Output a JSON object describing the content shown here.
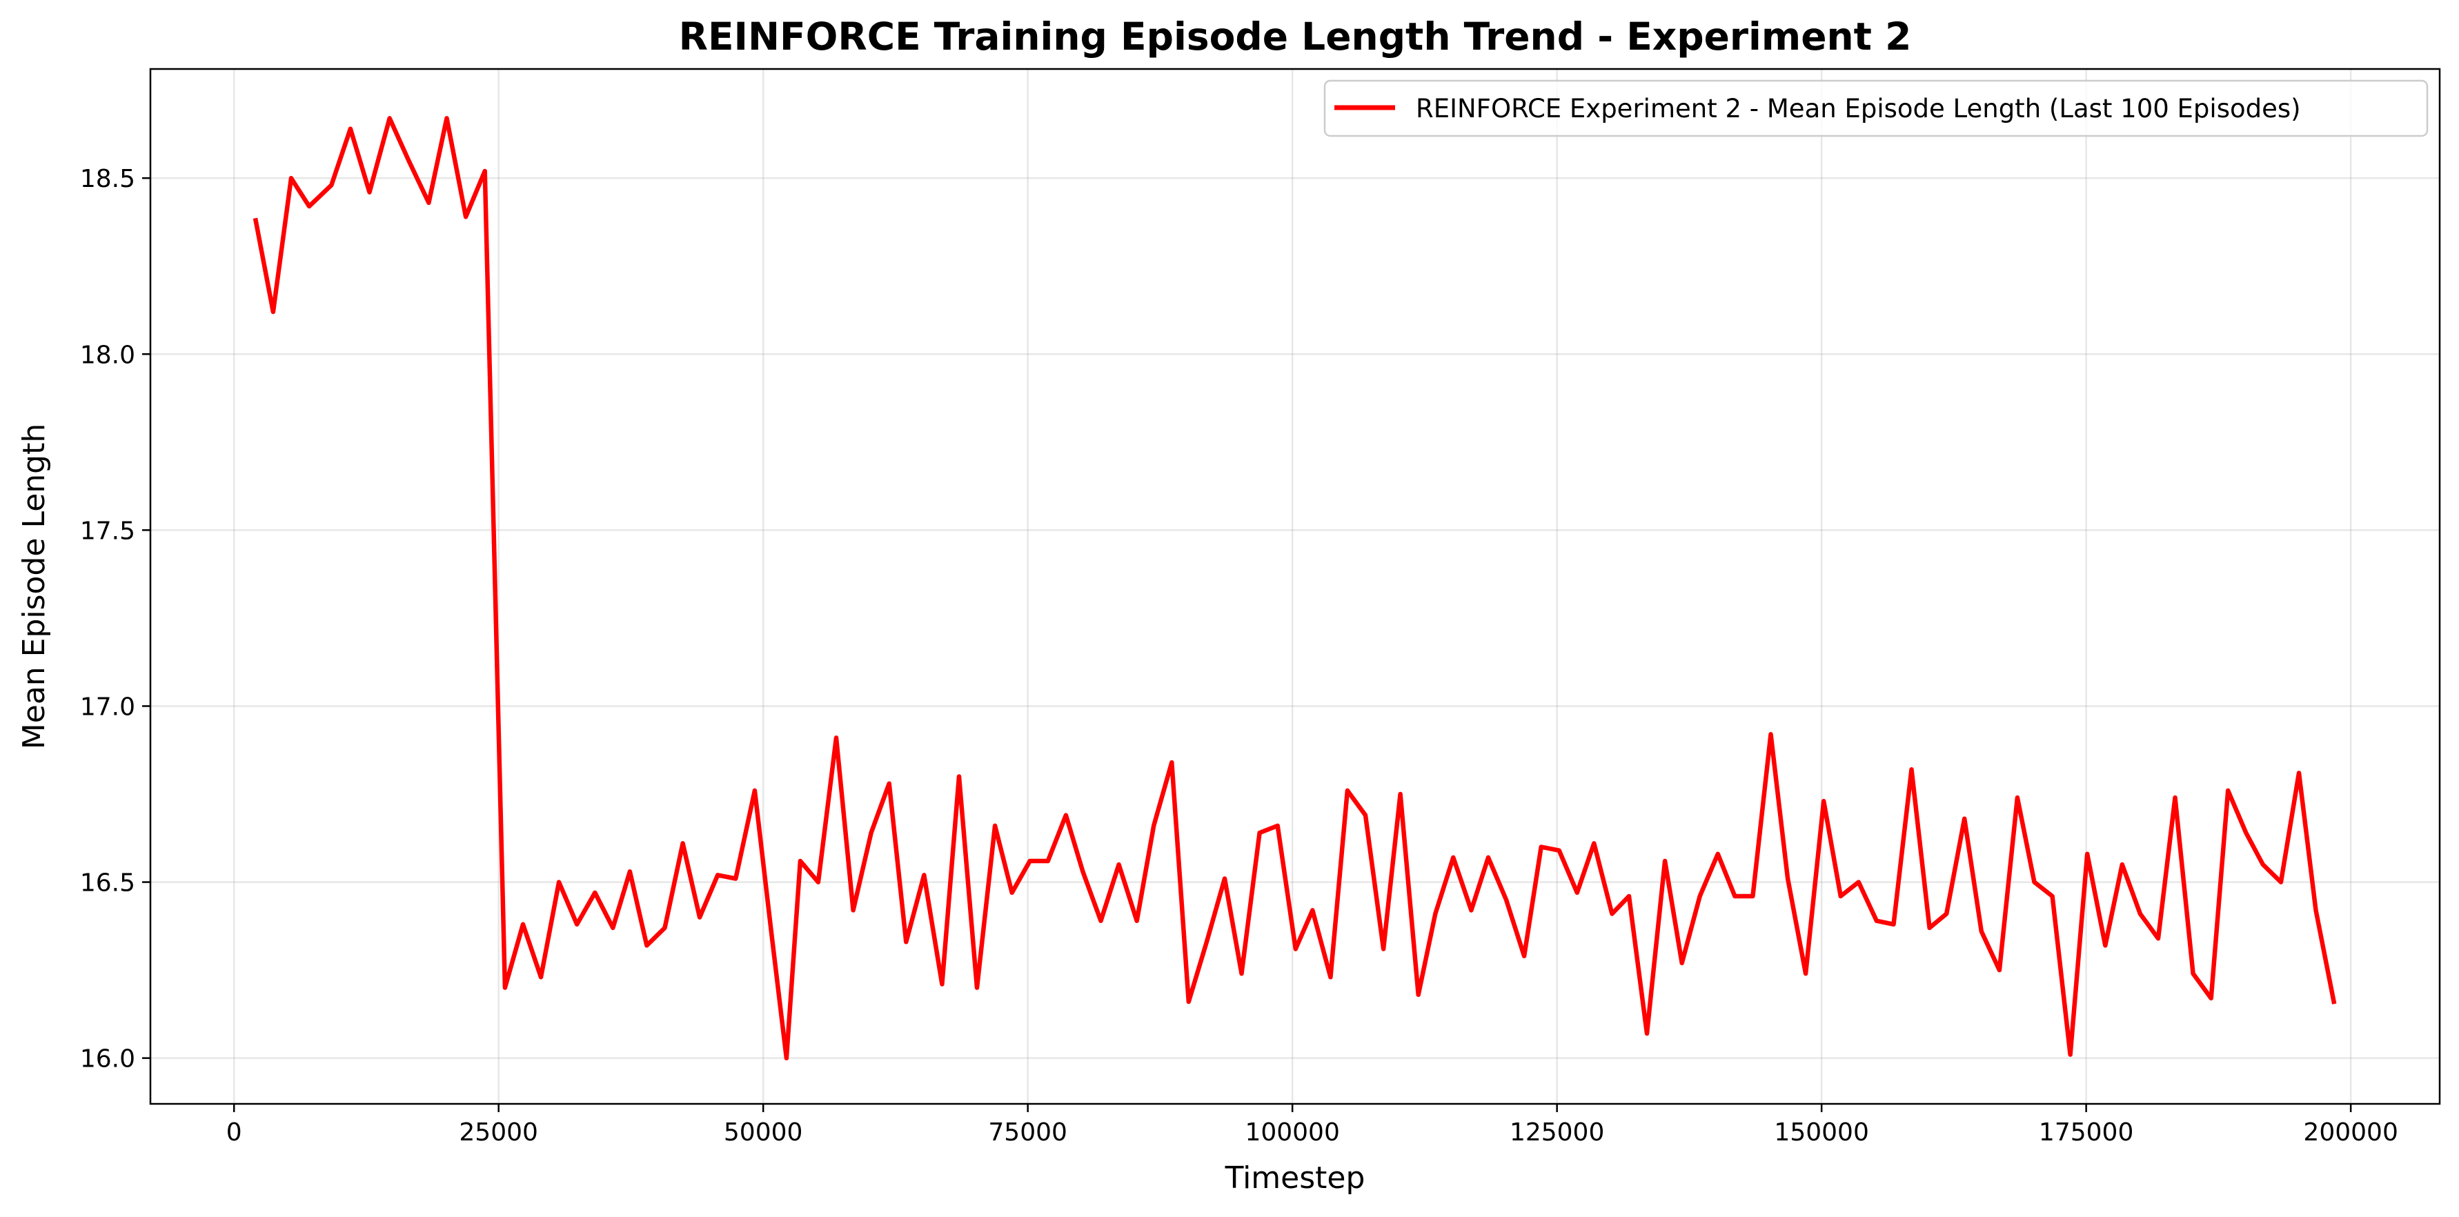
{
  "chart_data": {
    "type": "line",
    "title": "REINFORCE Training Episode Length Trend - Experiment 2",
    "xlabel": "Timestep",
    "ylabel": "Mean Episode Length",
    "xlim": [
      -7900,
      208400
    ],
    "ylim": [
      15.87,
      18.81
    ],
    "xticks": [
      0,
      25000,
      50000,
      75000,
      100000,
      125000,
      150000,
      175000,
      200000
    ],
    "xtick_labels": [
      "0",
      "25000",
      "50000",
      "75000",
      "100000",
      "125000",
      "150000",
      "175000",
      "200000"
    ],
    "yticks": [
      16.0,
      16.5,
      17.0,
      17.5,
      18.0,
      18.5
    ],
    "ytick_labels": [
      "16.0",
      "16.5",
      "17.0",
      "17.5",
      "18.0",
      "18.5"
    ],
    "grid": true,
    "legend_position": "upper right",
    "series": [
      {
        "name": "REINFORCE Experiment 2 - Mean Episode Length (Last 100 Episodes)",
        "color": "#ff0000",
        "x": [
          2048,
          3700,
          5400,
          7100,
          9200,
          11000,
          12800,
          14700,
          16500,
          18400,
          20100,
          21900,
          23700,
          25600,
          27300,
          29000,
          30700,
          32400,
          34100,
          35800,
          37400,
          39000,
          40700,
          42400,
          44000,
          45700,
          47400,
          49200,
          50800,
          52200,
          53500,
          55200,
          56900,
          58500,
          60200,
          61900,
          63500,
          65200,
          66900,
          68500,
          70200,
          71900,
          73500,
          75200,
          76900,
          78600,
          80200,
          81900,
          83600,
          85300,
          86900,
          88600,
          90200,
          91900,
          93600,
          95200,
          96900,
          98600,
          100300,
          101900,
          103600,
          105200,
          106900,
          108600,
          110200,
          111900,
          113500,
          115200,
          116900,
          118500,
          120200,
          121900,
          123500,
          125200,
          126900,
          128500,
          130200,
          131800,
          133500,
          135200,
          136800,
          138500,
          140200,
          141800,
          143500,
          145200,
          146800,
          148500,
          150200,
          151800,
          153500,
          155200,
          156800,
          158500,
          160200,
          161800,
          163500,
          165100,
          166800,
          168500,
          170100,
          171800,
          173500,
          175100,
          176800,
          178400,
          180100,
          181800,
          183400,
          185100,
          186800,
          188400,
          190100,
          191700,
          193400,
          195100,
          196700,
          198400
        ],
        "y": [
          18.38,
          18.12,
          18.5,
          18.42,
          18.48,
          18.64,
          18.46,
          18.67,
          18.55,
          18.43,
          18.67,
          18.39,
          18.52,
          16.2,
          16.38,
          16.23,
          16.5,
          16.38,
          16.47,
          16.37,
          16.53,
          16.32,
          16.37,
          16.61,
          16.4,
          16.52,
          16.51,
          16.76,
          16.35,
          16.0,
          16.56,
          16.5,
          16.91,
          16.42,
          16.64,
          16.78,
          16.33,
          16.52,
          16.21,
          16.8,
          16.2,
          16.66,
          16.47,
          16.56,
          16.56,
          16.69,
          16.53,
          16.39,
          16.55,
          16.39,
          16.66,
          16.84,
          16.16,
          16.33,
          16.51,
          16.24,
          16.64,
          16.66,
          16.31,
          16.42,
          16.23,
          16.76,
          16.69,
          16.31,
          16.75,
          16.18,
          16.41,
          16.57,
          16.42,
          16.57,
          16.45,
          16.29,
          16.6,
          16.59,
          16.47,
          16.61,
          16.41,
          16.46,
          16.07,
          16.56,
          16.27,
          16.46,
          16.58,
          16.46,
          16.46,
          16.92,
          16.51,
          16.24,
          16.73,
          16.46,
          16.5,
          16.39,
          16.38,
          16.82,
          16.37,
          16.41,
          16.68,
          16.36,
          16.25,
          16.74,
          16.5,
          16.46,
          16.01,
          16.58,
          16.32,
          16.55,
          16.41,
          16.34,
          16.74,
          16.24,
          16.17,
          16.76,
          16.64,
          16.55,
          16.5,
          16.81,
          16.42,
          16.16
        ]
      }
    ]
  }
}
